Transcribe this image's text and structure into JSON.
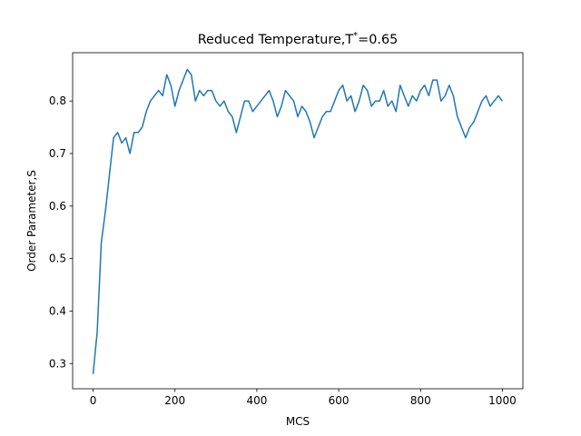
{
  "chart_data": {
    "type": "line",
    "title": {
      "text": "Reduced Temperature,T",
      "superscript": "*",
      "suffix": "=0.65"
    },
    "x_label": "MCS",
    "y_label": "Order Parameter,S",
    "x": [
      0,
      10,
      20,
      30,
      40,
      50,
      60,
      70,
      80,
      90,
      100,
      110,
      120,
      130,
      140,
      150,
      160,
      170,
      180,
      190,
      200,
      210,
      220,
      230,
      240,
      250,
      260,
      270,
      280,
      290,
      300,
      310,
      320,
      330,
      340,
      350,
      360,
      370,
      380,
      390,
      400,
      410,
      420,
      430,
      440,
      450,
      460,
      470,
      480,
      490,
      500,
      510,
      520,
      530,
      540,
      550,
      560,
      570,
      580,
      590,
      600,
      610,
      620,
      630,
      640,
      650,
      660,
      670,
      680,
      690,
      700,
      710,
      720,
      730,
      740,
      750,
      760,
      770,
      780,
      790,
      800,
      810,
      820,
      830,
      840,
      850,
      860,
      870,
      880,
      890,
      900,
      910,
      920,
      930,
      940,
      950,
      960,
      970,
      980,
      990,
      1000
    ],
    "series": [
      {
        "color": "#1f77b4",
        "values": [
          0.28,
          0.36,
          0.53,
          0.59,
          0.66,
          0.73,
          0.74,
          0.72,
          0.73,
          0.7,
          0.74,
          0.74,
          0.75,
          0.78,
          0.8,
          0.81,
          0.82,
          0.81,
          0.85,
          0.83,
          0.79,
          0.82,
          0.84,
          0.86,
          0.85,
          0.8,
          0.82,
          0.81,
          0.82,
          0.82,
          0.8,
          0.79,
          0.8,
          0.78,
          0.77,
          0.74,
          0.77,
          0.8,
          0.8,
          0.78,
          0.79,
          0.8,
          0.81,
          0.82,
          0.8,
          0.77,
          0.79,
          0.82,
          0.81,
          0.8,
          0.77,
          0.79,
          0.78,
          0.76,
          0.73,
          0.75,
          0.77,
          0.78,
          0.78,
          0.8,
          0.82,
          0.83,
          0.8,
          0.81,
          0.78,
          0.8,
          0.83,
          0.82,
          0.79,
          0.8,
          0.8,
          0.82,
          0.79,
          0.8,
          0.78,
          0.83,
          0.81,
          0.79,
          0.81,
          0.8,
          0.82,
          0.83,
          0.81,
          0.84,
          0.84,
          0.8,
          0.81,
          0.83,
          0.81,
          0.77,
          0.75,
          0.73,
          0.75,
          0.76,
          0.78,
          0.8,
          0.81,
          0.79,
          0.8,
          0.81,
          0.8
        ]
      }
    ],
    "xlim": [
      -50,
      1050
    ],
    "ylim": [
      0.252,
      0.892
    ],
    "xticks": [
      0,
      200,
      400,
      600,
      800,
      1000
    ],
    "yticks": [
      0.3,
      0.4,
      0.5,
      0.6,
      0.7,
      0.8
    ]
  }
}
